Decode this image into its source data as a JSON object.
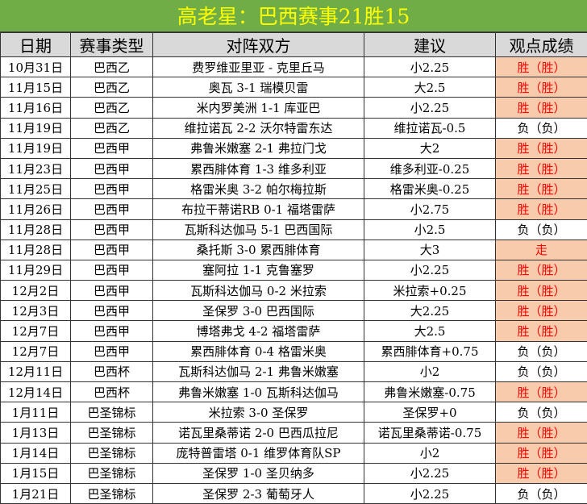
{
  "title": "高老星：巴西赛事21胜15",
  "colors": {
    "title_bg": "#70AD47",
    "title_text": "#FFFF00",
    "header_bg": "#D9D9D9",
    "win_bg": "#F8CBAD",
    "win_text": "#FF0000"
  },
  "headers": [
    "日期",
    "赛事类型",
    "对阵双方",
    "建议",
    "观点成绩"
  ],
  "rows": [
    [
      "10月31日",
      "巴西乙",
      "费罗维亚里亚 - 克里丘马",
      "小2.25",
      "胜（胜）"
    ],
    [
      "11月15日",
      "巴西乙",
      "奥瓦 3-1 瑞模贝雷",
      "大2.5",
      "胜（胜）"
    ],
    [
      "11月16日",
      "巴西乙",
      "米内罗美洲 1-1 库亚巴",
      "小2.25",
      "胜（胜）"
    ],
    [
      "11月19日",
      "巴西乙",
      "维拉诺瓦 2-2 沃尔特雷东达",
      "维拉诺瓦-0.5",
      "负（负）"
    ],
    [
      "11月19日",
      "巴西甲",
      "弗鲁米嫩塞 2-1 弗拉门戈",
      "大2",
      "胜（胜）"
    ],
    [
      "11月23日",
      "巴西甲",
      "累西腓体育 1-3 维多利亚",
      "维多利亚-0.25",
      "胜（胜）"
    ],
    [
      "11月25日",
      "巴西甲",
      "格雷米奥 3-2 帕尔梅拉斯",
      "格雷米奥-0.25",
      "胜（胜）"
    ],
    [
      "11月26日",
      "巴西甲",
      "布拉干蒂诺RB 0-1 福塔雷萨",
      "小2.75",
      "胜（胜）"
    ],
    [
      "11月28日",
      "巴西甲",
      "瓦斯科达伽马 5-1 巴西国际",
      "小2.5",
      "负（负）"
    ],
    [
      "11月28日",
      "巴西甲",
      "桑托斯 3-0 累西腓体育",
      "大3",
      "走"
    ],
    [
      "11月29日",
      "巴西甲",
      "塞阿拉 1-1 克鲁塞罗",
      "小2.25",
      "胜（胜）"
    ],
    [
      "12月2日",
      "巴西甲",
      "瓦斯科达伽马 0-2 米拉索",
      "米拉索+0.25",
      "胜（胜）"
    ],
    [
      "12月3日",
      "巴西甲",
      "圣保罗 3-0 巴西国际",
      "大2.25",
      "胜（胜）"
    ],
    [
      "12月7日",
      "巴西甲",
      "博塔弗戈 4-2 福塔雷萨",
      "大2.5",
      "胜（胜）"
    ],
    [
      "12月7日",
      "巴西甲",
      "累西腓体育 0-4 格雷米奥",
      "累西腓体育+0.75",
      "负（负）"
    ],
    [
      "12月11日",
      "巴西杯",
      "瓦斯科达伽马 2-1 弗鲁米嫩塞",
      "小2",
      "负（负）"
    ],
    [
      "12月14日",
      "巴西杯",
      "弗鲁米嫩塞 1-0 瓦斯科达伽马",
      "弗鲁米嫩塞-0.75",
      "胜（胜）"
    ],
    [
      "1月11日",
      "巴圣锦标",
      "米拉索 3-0 圣保罗",
      "圣保罗+0",
      "负（负）"
    ],
    [
      "1月13日",
      "巴圣锦标",
      "诺瓦里桑蒂诺 2-0 巴西瓜拉尼",
      "诺瓦里桑蒂诺-0.75",
      "胜（胜）"
    ],
    [
      "1月14日",
      "巴圣锦标",
      "庞特普雷塔 0-1 维罗体育队SP",
      "小2",
      "胜（胜）"
    ],
    [
      "1月15日",
      "巴圣锦标",
      "圣保罗 1-0 圣贝纳多",
      "小2.25",
      "胜（胜）"
    ],
    [
      "1月21日",
      "巴圣锦标",
      "圣保罗 2-3 葡萄牙人",
      "小2.25",
      "负（负）"
    ]
  ]
}
